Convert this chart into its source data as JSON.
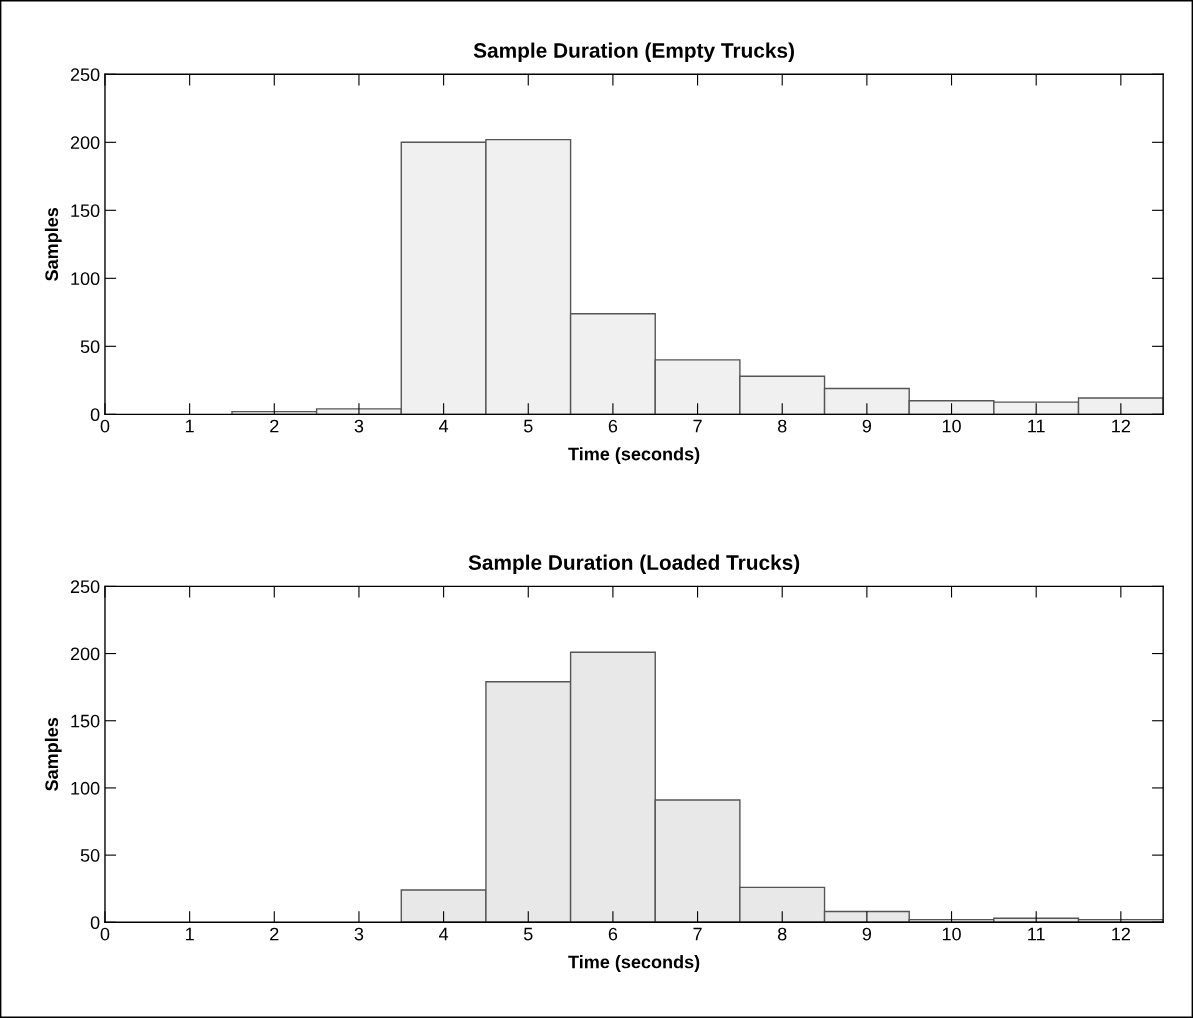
{
  "chart_data": [
    {
      "type": "histogram",
      "title": "Sample Duration (Empty Trucks)",
      "xlabel": "Time (seconds)",
      "ylabel": "Samples",
      "bins": [
        1.5,
        2.5,
        3.5,
        4.5,
        5.5,
        6.5,
        7.5,
        8.5,
        9.5,
        10.5,
        11.5,
        12.5
      ],
      "values": [
        2,
        4,
        200,
        202,
        74,
        40,
        28,
        19,
        10,
        9,
        12
      ],
      "color": "#f0f0f0",
      "xlim": [
        0,
        12.5
      ],
      "ylim": [
        0,
        250
      ],
      "xticks": [
        0,
        1,
        2,
        3,
        4,
        5,
        6,
        7,
        8,
        9,
        10,
        11,
        12
      ],
      "yticks": [
        0,
        50,
        100,
        150,
        200,
        250
      ],
      "grid": false
    },
    {
      "type": "histogram",
      "title": "Sample Duration (Loaded Trucks)",
      "xlabel": "Time (seconds)",
      "ylabel": "Samples",
      "bins": [
        3.5,
        4.5,
        5.5,
        6.5,
        7.5,
        8.5,
        9.5,
        10.5,
        11.5,
        12.5
      ],
      "values": [
        24,
        179,
        201,
        91,
        26,
        8,
        2,
        3,
        2
      ],
      "color": "#e8e8e8",
      "xlim": [
        0,
        12.5
      ],
      "ylim": [
        0,
        250
      ],
      "xticks": [
        0,
        1,
        2,
        3,
        4,
        5,
        6,
        7,
        8,
        9,
        10,
        11,
        12
      ],
      "yticks": [
        0,
        50,
        100,
        150,
        200,
        250
      ],
      "grid": false
    }
  ]
}
